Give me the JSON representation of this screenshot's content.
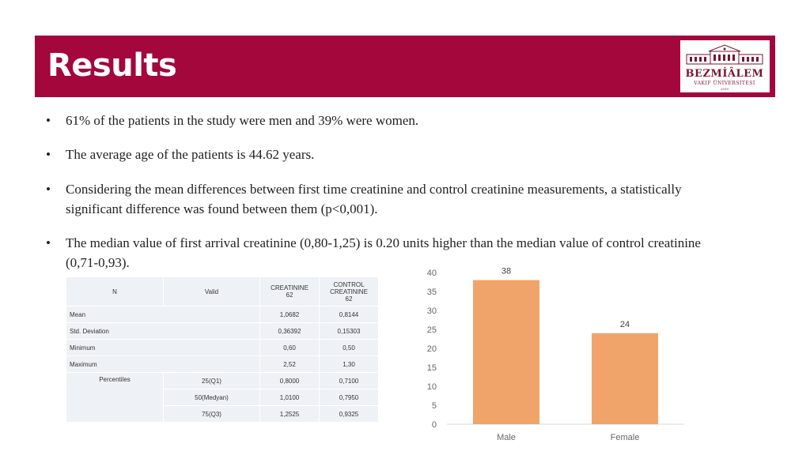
{
  "slide": {
    "title": "Results",
    "logo": {
      "name": "BEZMİÂLEM",
      "subtitle": "VAKIF ÜNİVERSİTESİ",
      "year": "2010"
    }
  },
  "bullets": [
    {
      "marker": "•",
      "text": "61% of the patients in the study were men and 39% were women."
    },
    {
      "marker": "•",
      "text": "The average age of the patients is 44.62 years."
    },
    {
      "marker": "•",
      "text": "Considering the mean differences between first time creatinine and control creatinine measurements, a statistically significant difference was found between them (p<0,001)."
    },
    {
      "marker": "•",
      "text": "The median value of first arrival creatinine (0,80-1,25) is 0.20 units higher than the median value of control creatinine (0,71-0,93)."
    }
  ],
  "table": {
    "header": {
      "n": "N",
      "valid": "Valid",
      "col1": "CREATININE",
      "col2_line1": "CONTROL",
      "col2_line2": "CREATININE",
      "n_col1": "62",
      "n_col2": "62"
    },
    "rows": [
      {
        "label": "Mean",
        "c1": "1,0682",
        "c2": "0,8144"
      },
      {
        "label": "Std. Deviation",
        "c1": "0,36392",
        "c2": "0,15303"
      },
      {
        "label": "Minimum",
        "c1": "0,60",
        "c2": "0,50"
      },
      {
        "label": "Maximum",
        "c1": "2,52",
        "c2": "1,30"
      }
    ],
    "percentiles": {
      "label": "Percentiles",
      "rows": [
        {
          "label": "25(Q1)",
          "c1": "0,8000",
          "c2": "0,7100"
        },
        {
          "label": "50(Medyan)",
          "c1": "1,0100",
          "c2": "0,7950"
        },
        {
          "label": "75(Q3)",
          "c1": "1,2525",
          "c2": "0,9325"
        }
      ]
    }
  },
  "chart_data": {
    "type": "bar",
    "categories": [
      "Male",
      "Female"
    ],
    "values": [
      38,
      24
    ],
    "title": "",
    "xlabel": "",
    "ylabel": "",
    "ylim": [
      0,
      40
    ],
    "yticks": [
      0,
      5,
      10,
      15,
      20,
      25,
      30,
      35,
      40
    ],
    "grid": false,
    "legend": "none",
    "bar_color": "#f0a46a",
    "data_labels": true
  }
}
